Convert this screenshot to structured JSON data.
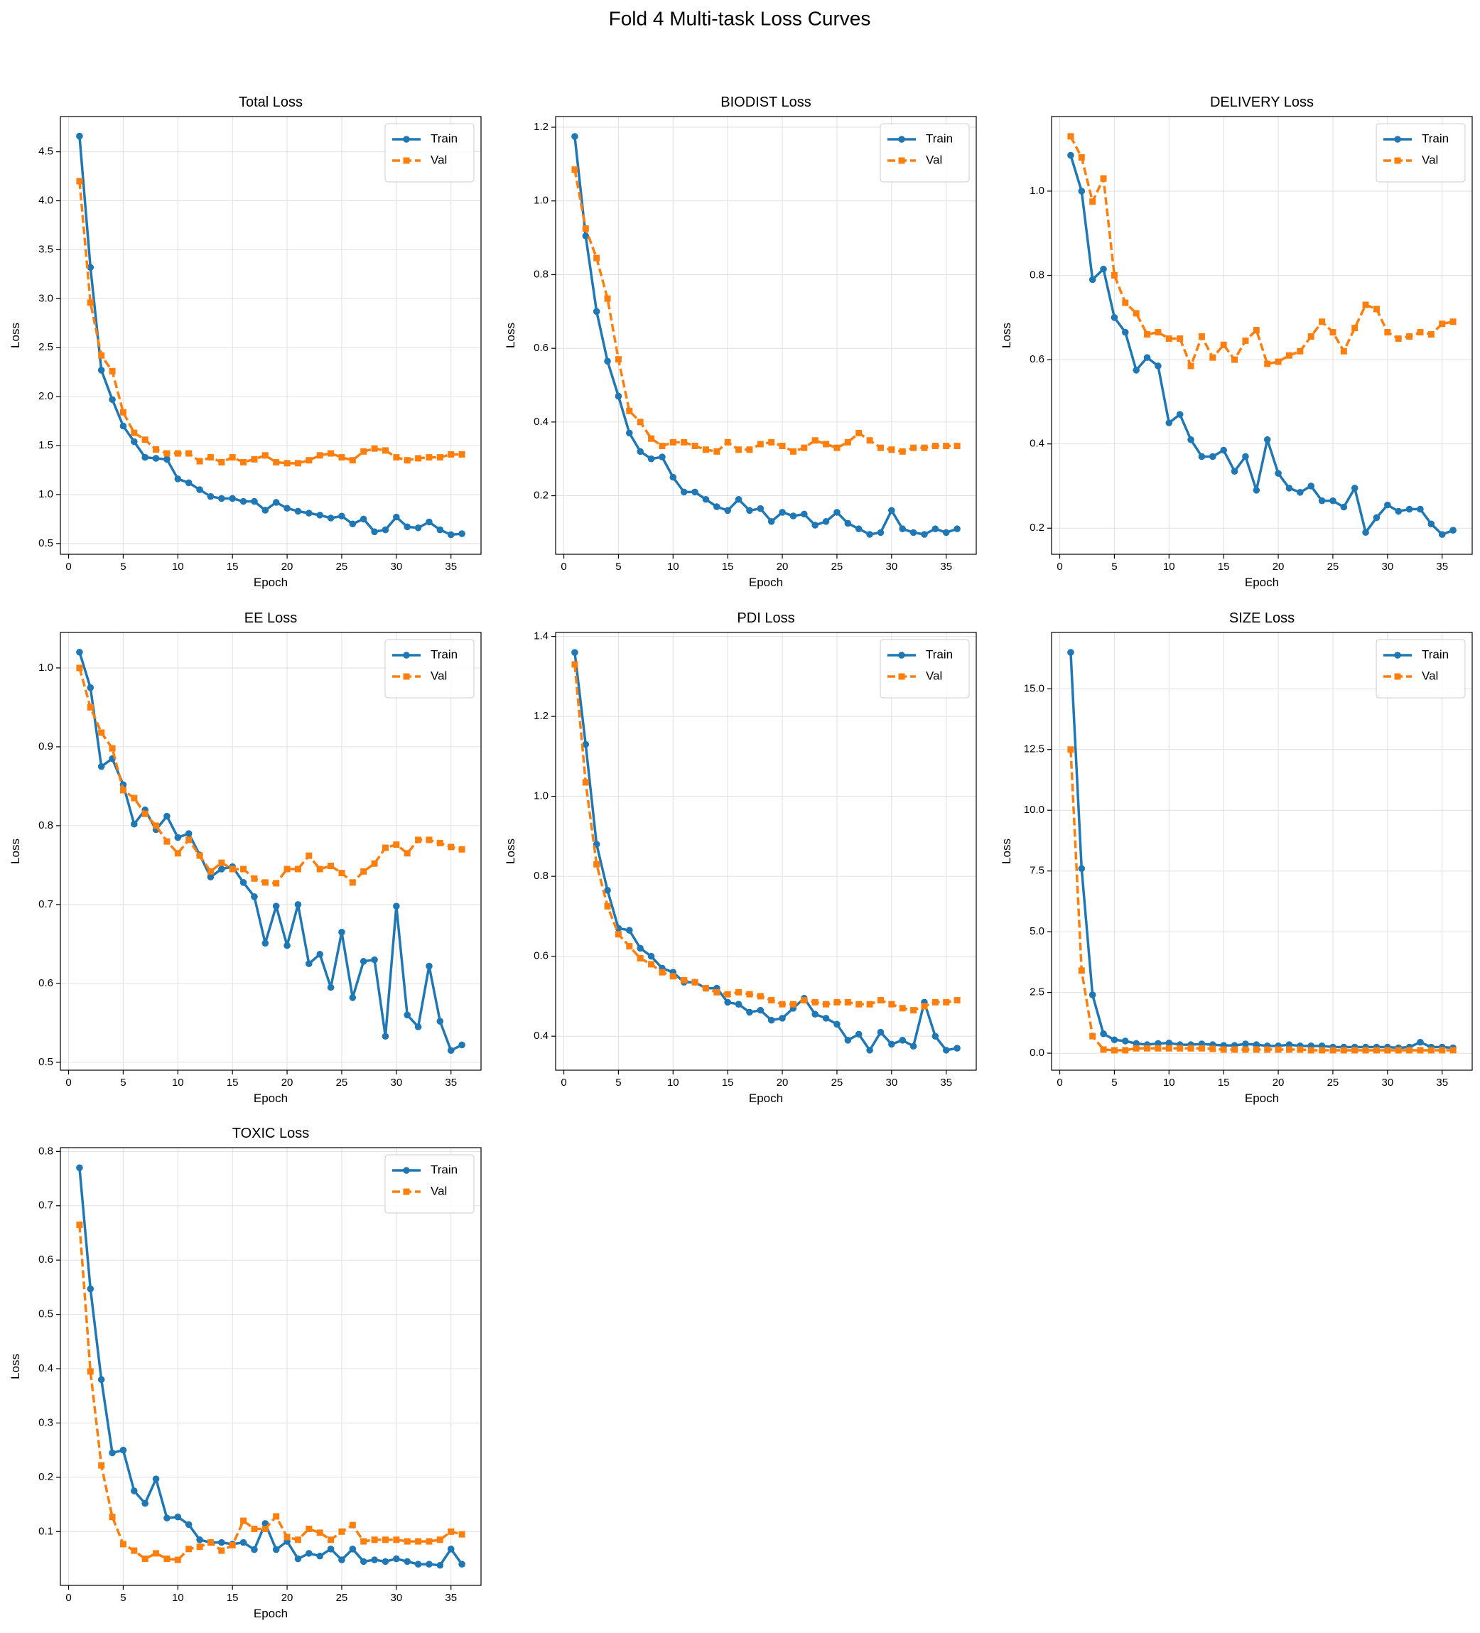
{
  "title": "Fold 4 Multi-task Loss Curves",
  "chart_data": [
    {
      "type": "line",
      "title": "Total Loss",
      "x_label": "Epoch",
      "y_label": "Loss",
      "grid": true,
      "legend": "upper right",
      "x": [
        1,
        2,
        3,
        4,
        5,
        6,
        7,
        8,
        9,
        10,
        11,
        12,
        13,
        14,
        15,
        16,
        17,
        18,
        19,
        20,
        21,
        22,
        23,
        24,
        25,
        26,
        27,
        28,
        29,
        30,
        31,
        32,
        33,
        34,
        35,
        36
      ],
      "xlim": [
        -0.75,
        37.75
      ],
      "xticks": [
        0,
        5,
        10,
        15,
        20,
        25,
        30,
        35
      ],
      "ylim": [
        0.39,
        4.86
      ],
      "yticks": [
        0.5,
        {
          "value": 1,
          "label": "1.0"
        },
        1.5,
        {
          "value": 2,
          "label": "2.0"
        },
        2.5,
        {
          "value": 3,
          "label": "3.0"
        },
        3.5,
        {
          "value": 4,
          "label": "4.0"
        },
        4.5
      ],
      "series": [
        {
          "name": "Train",
          "color": "#1f77b4",
          "linestyle": "solid",
          "marker": "circle",
          "values": [
            4.66,
            3.32,
            2.27,
            1.97,
            1.7,
            1.54,
            1.38,
            1.37,
            1.36,
            1.16,
            1.12,
            1.05,
            0.98,
            0.96,
            0.96,
            0.93,
            0.93,
            0.84,
            0.92,
            0.86,
            0.83,
            0.81,
            0.79,
            0.76,
            0.78,
            0.7,
            0.75,
            0.62,
            0.64,
            0.77,
            0.67,
            0.66,
            0.72,
            0.64,
            0.59,
            0.6
          ]
        },
        {
          "name": "Val",
          "color": "#ff7f0e",
          "linestyle": "dashed",
          "marker": "square",
          "values": [
            4.2,
            2.96,
            2.42,
            2.26,
            1.84,
            1.63,
            1.56,
            1.46,
            1.42,
            1.42,
            1.42,
            1.34,
            1.38,
            1.33,
            1.38,
            1.33,
            1.36,
            1.4,
            1.33,
            1.32,
            1.32,
            1.35,
            1.4,
            1.42,
            1.38,
            1.35,
            1.44,
            1.47,
            1.45,
            1.38,
            1.35,
            1.37,
            1.38,
            1.38,
            1.41,
            1.41
          ]
        }
      ]
    },
    {
      "type": "line",
      "title": "BIODIST Loss",
      "x_label": "Epoch",
      "y_label": "Loss",
      "grid": true,
      "legend": "upper right",
      "x": [
        1,
        2,
        3,
        4,
        5,
        6,
        7,
        8,
        9,
        10,
        11,
        12,
        13,
        14,
        15,
        16,
        17,
        18,
        19,
        20,
        21,
        22,
        23,
        24,
        25,
        26,
        27,
        28,
        29,
        30,
        31,
        32,
        33,
        34,
        35,
        36
      ],
      "xlim": [
        -0.75,
        37.75
      ],
      "xticks": [
        0,
        5,
        10,
        15,
        20,
        25,
        30,
        35
      ],
      "ylim": [
        0.041,
        1.229
      ],
      "yticks": [
        0.2,
        0.4,
        0.6,
        0.8,
        {
          "value": 1,
          "label": "1.0"
        },
        1.2
      ],
      "series": [
        {
          "name": "Train",
          "color": "#1f77b4",
          "linestyle": "solid",
          "marker": "circle",
          "values": [
            1.175,
            0.905,
            0.7,
            0.565,
            0.47,
            0.37,
            0.32,
            0.3,
            0.305,
            0.25,
            0.21,
            0.21,
            0.19,
            0.17,
            0.16,
            0.19,
            0.16,
            0.165,
            0.13,
            0.155,
            0.145,
            0.15,
            0.12,
            0.13,
            0.155,
            0.125,
            0.11,
            0.095,
            0.1,
            0.16,
            0.11,
            0.1,
            0.095,
            0.11,
            0.1,
            0.11
          ]
        },
        {
          "name": "Val",
          "color": "#ff7f0e",
          "linestyle": "dashed",
          "marker": "square",
          "values": [
            1.085,
            0.925,
            0.845,
            0.735,
            0.57,
            0.43,
            0.4,
            0.355,
            0.335,
            0.345,
            0.345,
            0.335,
            0.325,
            0.32,
            0.345,
            0.325,
            0.325,
            0.34,
            0.345,
            0.335,
            0.32,
            0.33,
            0.35,
            0.34,
            0.33,
            0.345,
            0.37,
            0.35,
            0.33,
            0.325,
            0.32,
            0.33,
            0.33,
            0.335,
            0.335,
            0.335
          ]
        }
      ]
    },
    {
      "type": "line",
      "title": "DELIVERY Loss",
      "x_label": "Epoch",
      "y_label": "Loss",
      "grid": true,
      "legend": "upper right",
      "x": [
        1,
        2,
        3,
        4,
        5,
        6,
        7,
        8,
        9,
        10,
        11,
        12,
        13,
        14,
        15,
        16,
        17,
        18,
        19,
        20,
        21,
        22,
        23,
        24,
        25,
        26,
        27,
        28,
        29,
        30,
        31,
        32,
        33,
        34,
        35,
        36
      ],
      "xlim": [
        -0.75,
        37.75
      ],
      "xticks": [
        0,
        5,
        10,
        15,
        20,
        25,
        30,
        35
      ],
      "ylim": [
        0.138,
        1.177
      ],
      "yticks": [
        0.2,
        0.4,
        0.6,
        0.8,
        {
          "value": 1,
          "label": "1.0"
        }
      ],
      "series": [
        {
          "name": "Train",
          "color": "#1f77b4",
          "linestyle": "solid",
          "marker": "circle",
          "values": [
            1.085,
            1.0,
            0.79,
            0.815,
            0.7,
            0.665,
            0.575,
            0.605,
            0.585,
            0.45,
            0.47,
            0.41,
            0.37,
            0.37,
            0.385,
            0.335,
            0.37,
            0.29,
            0.41,
            0.33,
            0.295,
            0.285,
            0.3,
            0.265,
            0.265,
            0.25,
            0.295,
            0.19,
            0.225,
            0.255,
            0.24,
            0.245,
            0.245,
            0.21,
            0.185,
            0.195
          ]
        },
        {
          "name": "Val",
          "color": "#ff7f0e",
          "linestyle": "dashed",
          "marker": "square",
          "values": [
            1.13,
            1.08,
            0.975,
            1.03,
            0.8,
            0.735,
            0.71,
            0.66,
            0.665,
            0.65,
            0.65,
            0.585,
            0.655,
            0.605,
            0.635,
            0.6,
            0.645,
            0.67,
            0.59,
            0.595,
            0.61,
            0.62,
            0.655,
            0.69,
            0.665,
            0.62,
            0.675,
            0.73,
            0.72,
            0.665,
            0.65,
            0.655,
            0.665,
            0.66,
            0.685,
            0.69
          ]
        }
      ]
    },
    {
      "type": "line",
      "title": "EE Loss",
      "x_label": "Epoch",
      "y_label": "Loss",
      "grid": true,
      "legend": "upper right",
      "x": [
        1,
        2,
        3,
        4,
        5,
        6,
        7,
        8,
        9,
        10,
        11,
        12,
        13,
        14,
        15,
        16,
        17,
        18,
        19,
        20,
        21,
        22,
        23,
        24,
        25,
        26,
        27,
        28,
        29,
        30,
        31,
        32,
        33,
        34,
        35,
        36
      ],
      "xlim": [
        -0.75,
        37.75
      ],
      "xticks": [
        0,
        5,
        10,
        15,
        20,
        25,
        30,
        35
      ],
      "ylim": [
        0.49,
        1.045
      ],
      "yticks": [
        0.5,
        0.6,
        0.7,
        0.8,
        0.9,
        {
          "value": 1,
          "label": "1.0"
        }
      ],
      "series": [
        {
          "name": "Train",
          "color": "#1f77b4",
          "linestyle": "solid",
          "marker": "circle",
          "values": [
            1.02,
            0.975,
            0.875,
            0.885,
            0.852,
            0.802,
            0.82,
            0.795,
            0.812,
            0.785,
            0.79,
            0.763,
            0.735,
            0.745,
            0.748,
            0.728,
            0.71,
            0.651,
            0.698,
            0.648,
            0.7,
            0.625,
            0.637,
            0.595,
            0.665,
            0.582,
            0.628,
            0.63,
            0.533,
            0.698,
            0.56,
            0.545,
            0.622,
            0.552,
            0.515,
            0.522
          ]
        },
        {
          "name": "Val",
          "color": "#ff7f0e",
          "linestyle": "dashed",
          "marker": "square",
          "values": [
            1.0,
            0.95,
            0.918,
            0.898,
            0.845,
            0.835,
            0.815,
            0.8,
            0.78,
            0.765,
            0.782,
            0.762,
            0.742,
            0.753,
            0.745,
            0.745,
            0.733,
            0.728,
            0.727,
            0.745,
            0.745,
            0.762,
            0.745,
            0.749,
            0.74,
            0.728,
            0.742,
            0.752,
            0.772,
            0.776,
            0.765,
            0.782,
            0.782,
            0.778,
            0.773,
            0.77
          ]
        }
      ]
    },
    {
      "type": "line",
      "title": "PDI Loss",
      "x_label": "Epoch",
      "y_label": "Loss",
      "grid": true,
      "legend": "upper right",
      "x": [
        1,
        2,
        3,
        4,
        5,
        6,
        7,
        8,
        9,
        10,
        11,
        12,
        13,
        14,
        15,
        16,
        17,
        18,
        19,
        20,
        21,
        22,
        23,
        24,
        25,
        26,
        27,
        28,
        29,
        30,
        31,
        32,
        33,
        34,
        35,
        36
      ],
      "xlim": [
        -0.75,
        37.75
      ],
      "xticks": [
        0,
        5,
        10,
        15,
        20,
        25,
        30,
        35
      ],
      "ylim": [
        0.315,
        1.41
      ],
      "yticks": [
        0.4,
        0.6,
        0.8,
        {
          "value": 1,
          "label": "1.0"
        },
        1.2,
        1.4
      ],
      "series": [
        {
          "name": "Train",
          "color": "#1f77b4",
          "linestyle": "solid",
          "marker": "circle",
          "values": [
            1.36,
            1.13,
            0.88,
            0.765,
            0.67,
            0.665,
            0.62,
            0.6,
            0.57,
            0.56,
            0.535,
            0.535,
            0.52,
            0.52,
            0.485,
            0.48,
            0.46,
            0.465,
            0.44,
            0.445,
            0.47,
            0.495,
            0.455,
            0.445,
            0.43,
            0.39,
            0.405,
            0.365,
            0.41,
            0.38,
            0.39,
            0.375,
            0.485,
            0.4,
            0.365,
            0.37
          ]
        },
        {
          "name": "Val",
          "color": "#ff7f0e",
          "linestyle": "dashed",
          "marker": "square",
          "values": [
            1.33,
            1.035,
            0.83,
            0.725,
            0.655,
            0.625,
            0.595,
            0.58,
            0.56,
            0.55,
            0.54,
            0.535,
            0.52,
            0.51,
            0.505,
            0.51,
            0.505,
            0.5,
            0.49,
            0.48,
            0.48,
            0.49,
            0.485,
            0.48,
            0.485,
            0.485,
            0.48,
            0.48,
            0.49,
            0.48,
            0.47,
            0.465,
            0.475,
            0.485,
            0.485,
            0.49
          ]
        }
      ]
    },
    {
      "type": "line",
      "title": "SIZE Loss",
      "x_label": "Epoch",
      "y_label": "Loss",
      "grid": true,
      "legend": "upper right",
      "x": [
        1,
        2,
        3,
        4,
        5,
        6,
        7,
        8,
        9,
        10,
        11,
        12,
        13,
        14,
        15,
        16,
        17,
        18,
        19,
        20,
        21,
        22,
        23,
        24,
        25,
        26,
        27,
        28,
        29,
        30,
        31,
        32,
        33,
        34,
        35,
        36
      ],
      "xlim": [
        -0.75,
        37.75
      ],
      "xticks": [
        0,
        5,
        10,
        15,
        20,
        25,
        30,
        35
      ],
      "ylim": [
        -0.7,
        17.32
      ],
      "yticks": [
        {
          "value": 0,
          "label": "0.0"
        },
        2.5,
        {
          "value": 5,
          "label": "5.0"
        },
        7.5,
        {
          "value": 10,
          "label": "10.0"
        },
        12.5,
        {
          "value": 15,
          "label": "15.0"
        }
      ],
      "series": [
        {
          "name": "Train",
          "color": "#1f77b4",
          "linestyle": "solid",
          "marker": "circle",
          "values": [
            16.5,
            7.6,
            2.4,
            0.8,
            0.55,
            0.5,
            0.4,
            0.35,
            0.4,
            0.42,
            0.35,
            0.35,
            0.38,
            0.35,
            0.32,
            0.32,
            0.38,
            0.35,
            0.3,
            0.3,
            0.35,
            0.3,
            0.3,
            0.3,
            0.25,
            0.25,
            0.25,
            0.25,
            0.25,
            0.25,
            0.22,
            0.25,
            0.45,
            0.25,
            0.25,
            0.22
          ]
        },
        {
          "name": "Val",
          "color": "#ff7f0e",
          "linestyle": "dashed",
          "marker": "square",
          "values": [
            12.5,
            3.4,
            0.7,
            0.15,
            0.12,
            0.12,
            0.2,
            0.2,
            0.2,
            0.2,
            0.2,
            0.2,
            0.2,
            0.18,
            0.15,
            0.15,
            0.15,
            0.15,
            0.15,
            0.15,
            0.15,
            0.15,
            0.12,
            0.12,
            0.12,
            0.12,
            0.12,
            0.12,
            0.12,
            0.12,
            0.12,
            0.12,
            0.12,
            0.12,
            0.12,
            0.12
          ]
        }
      ]
    },
    {
      "type": "line",
      "title": "TOXIC Loss",
      "x_label": "Epoch",
      "y_label": "Loss",
      "grid": true,
      "legend": "upper right",
      "x": [
        1,
        2,
        3,
        4,
        5,
        6,
        7,
        8,
        9,
        10,
        11,
        12,
        13,
        14,
        15,
        16,
        17,
        18,
        19,
        20,
        21,
        22,
        23,
        24,
        25,
        26,
        27,
        28,
        29,
        30,
        31,
        32,
        33,
        34,
        35,
        36
      ],
      "xlim": [
        -0.75,
        37.75
      ],
      "xticks": [
        0,
        5,
        10,
        15,
        20,
        25,
        30,
        35
      ],
      "ylim": [
        0.001,
        0.807
      ],
      "yticks": [
        0.1,
        0.2,
        0.3,
        0.4,
        0.5,
        0.6,
        0.7,
        0.8
      ],
      "series": [
        {
          "name": "Train",
          "color": "#1f77b4",
          "linestyle": "solid",
          "marker": "circle",
          "values": [
            0.77,
            0.547,
            0.38,
            0.245,
            0.25,
            0.175,
            0.152,
            0.197,
            0.125,
            0.127,
            0.113,
            0.085,
            0.08,
            0.08,
            0.077,
            0.08,
            0.067,
            0.115,
            0.067,
            0.082,
            0.05,
            0.06,
            0.055,
            0.068,
            0.048,
            0.068,
            0.045,
            0.048,
            0.045,
            0.05,
            0.045,
            0.04,
            0.04,
            0.038,
            0.068,
            0.04
          ]
        },
        {
          "name": "Val",
          "color": "#ff7f0e",
          "linestyle": "dashed",
          "marker": "square",
          "values": [
            0.665,
            0.395,
            0.222,
            0.127,
            0.077,
            0.065,
            0.05,
            0.06,
            0.05,
            0.048,
            0.068,
            0.072,
            0.08,
            0.065,
            0.075,
            0.12,
            0.105,
            0.105,
            0.128,
            0.09,
            0.085,
            0.105,
            0.098,
            0.085,
            0.1,
            0.112,
            0.082,
            0.085,
            0.085,
            0.085,
            0.082,
            0.082,
            0.082,
            0.085,
            0.1,
            0.095
          ]
        }
      ]
    }
  ]
}
